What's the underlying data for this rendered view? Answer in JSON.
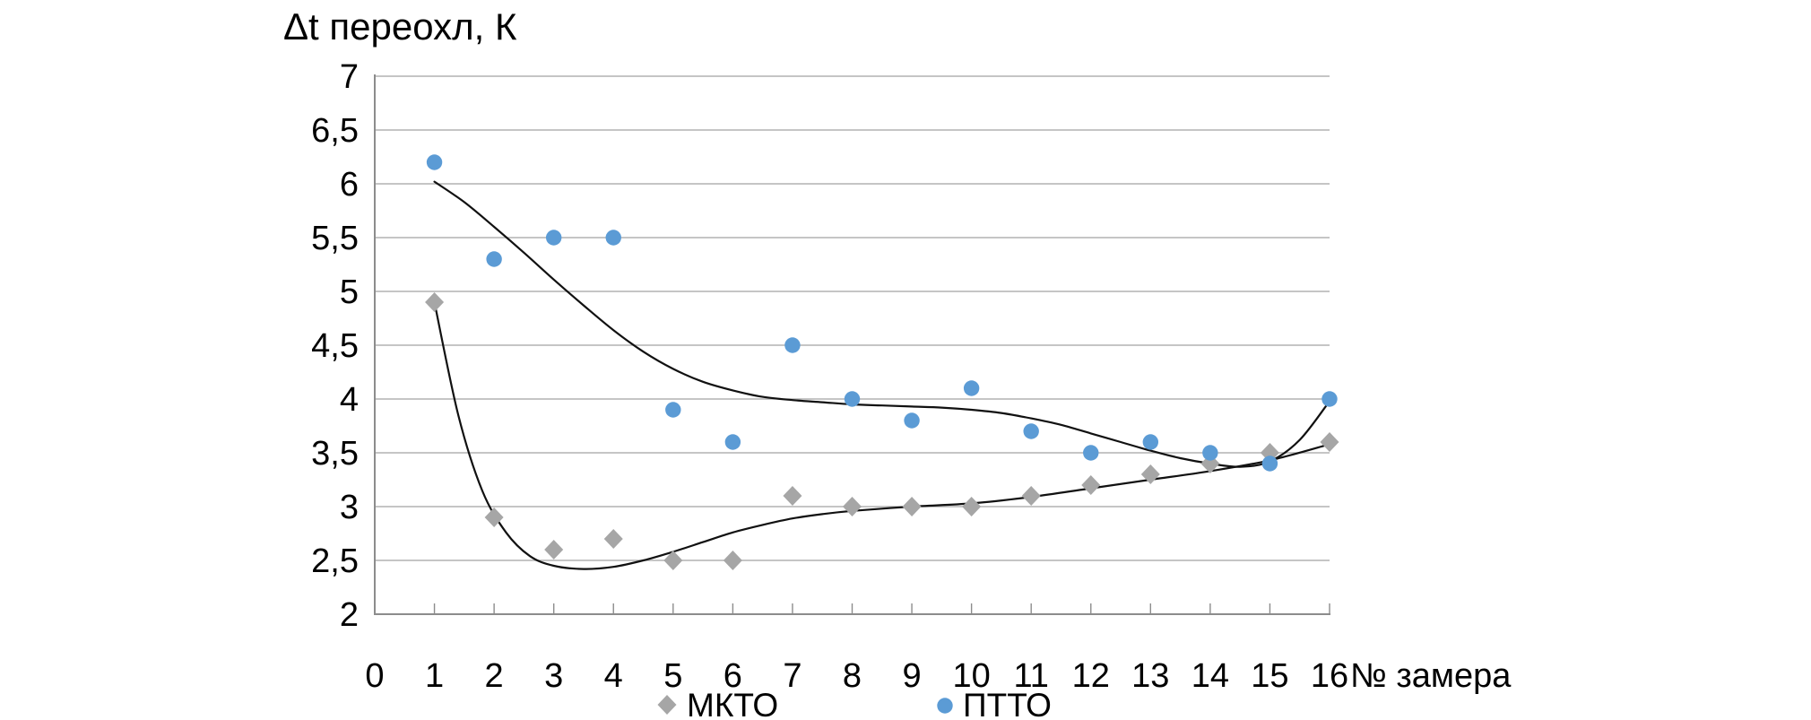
{
  "chart_data": {
    "type": "scatter",
    "title": "Δt переохл, К",
    "xlabel": "№ замера",
    "ylabel": "Δt переохл, К",
    "xlim": [
      0,
      16
    ],
    "ylim": [
      2,
      7
    ],
    "grid": true,
    "legend_position": "bottom",
    "x_ticks": [
      0,
      1,
      2,
      3,
      4,
      5,
      6,
      7,
      8,
      9,
      10,
      11,
      12,
      13,
      14,
      15,
      16
    ],
    "x_tick_labels": [
      "0",
      "1",
      "2",
      "3",
      "4",
      "5",
      "6",
      "7",
      "8",
      "9",
      "10",
      "11",
      "12",
      "13",
      "14",
      "15",
      "16"
    ],
    "y_ticks": [
      2,
      2.5,
      3,
      3.5,
      4,
      4.5,
      5,
      5.5,
      6,
      6.5,
      7
    ],
    "y_tick_labels": [
      "2",
      "2,5",
      "3",
      "3,5",
      "4",
      "4,5",
      "5",
      "5,5",
      "6",
      "6,5",
      "7"
    ],
    "x": [
      1,
      2,
      3,
      4,
      5,
      6,
      7,
      8,
      9,
      10,
      11,
      12,
      13,
      14,
      15,
      16
    ],
    "series": [
      {
        "name": "МКТО",
        "marker": "diamond",
        "color": "#a6a6a6",
        "values": [
          4.9,
          2.9,
          2.6,
          2.7,
          2.5,
          2.5,
          3.1,
          3.0,
          3.0,
          3.0,
          3.1,
          3.2,
          3.3,
          3.4,
          3.5,
          3.6
        ]
      },
      {
        "name": "ПТТО",
        "marker": "circle",
        "color": "#5b9bd5",
        "values": [
          6.2,
          5.3,
          5.5,
          5.5,
          3.9,
          3.6,
          4.5,
          4.0,
          3.8,
          4.1,
          3.7,
          3.5,
          3.6,
          3.5,
          3.4,
          4.0
        ]
      }
    ],
    "trendlines": [
      {
        "name": "МКТО",
        "color": "#111111",
        "points": [
          [
            1,
            4.9
          ],
          [
            1.4,
            3.85
          ],
          [
            1.8,
            3.15
          ],
          [
            2.2,
            2.76
          ],
          [
            2.6,
            2.54
          ],
          [
            3,
            2.45
          ],
          [
            3.5,
            2.42
          ],
          [
            4,
            2.44
          ],
          [
            4.5,
            2.5
          ],
          [
            5,
            2.58
          ],
          [
            5.5,
            2.67
          ],
          [
            6,
            2.76
          ],
          [
            6.5,
            2.83
          ],
          [
            7,
            2.89
          ],
          [
            7.5,
            2.93
          ],
          [
            8,
            2.96
          ],
          [
            9,
            3.0
          ],
          [
            10,
            3.03
          ],
          [
            11,
            3.09
          ],
          [
            12,
            3.17
          ],
          [
            13,
            3.25
          ],
          [
            14,
            3.33
          ],
          [
            15,
            3.43
          ],
          [
            16,
            3.58
          ]
        ]
      },
      {
        "name": "ПТТО",
        "color": "#111111",
        "points": [
          [
            1,
            6.02
          ],
          [
            1.5,
            5.83
          ],
          [
            2,
            5.6
          ],
          [
            2.5,
            5.36
          ],
          [
            3,
            5.11
          ],
          [
            3.5,
            4.87
          ],
          [
            4,
            4.64
          ],
          [
            4.5,
            4.44
          ],
          [
            5,
            4.28
          ],
          [
            5.5,
            4.16
          ],
          [
            6,
            4.08
          ],
          [
            6.5,
            4.02
          ],
          [
            7,
            3.99
          ],
          [
            7.5,
            3.97
          ],
          [
            8,
            3.95
          ],
          [
            8.5,
            3.94
          ],
          [
            9,
            3.93
          ],
          [
            9.5,
            3.92
          ],
          [
            10,
            3.9
          ],
          [
            10.5,
            3.87
          ],
          [
            11,
            3.82
          ],
          [
            11.5,
            3.76
          ],
          [
            12,
            3.68
          ],
          [
            12.5,
            3.6
          ],
          [
            13,
            3.52
          ],
          [
            13.5,
            3.45
          ],
          [
            14,
            3.4
          ],
          [
            14.5,
            3.37
          ],
          [
            15,
            3.42
          ],
          [
            15.5,
            3.62
          ],
          [
            16,
            3.98
          ]
        ]
      }
    ]
  },
  "legend": {
    "items": [
      {
        "label": "МКТО",
        "marker": "diamond-marker-icon",
        "color": "#a6a6a6"
      },
      {
        "label": "ПТТО",
        "marker": "circle-marker-icon",
        "color": "#5b9bd5"
      }
    ]
  }
}
